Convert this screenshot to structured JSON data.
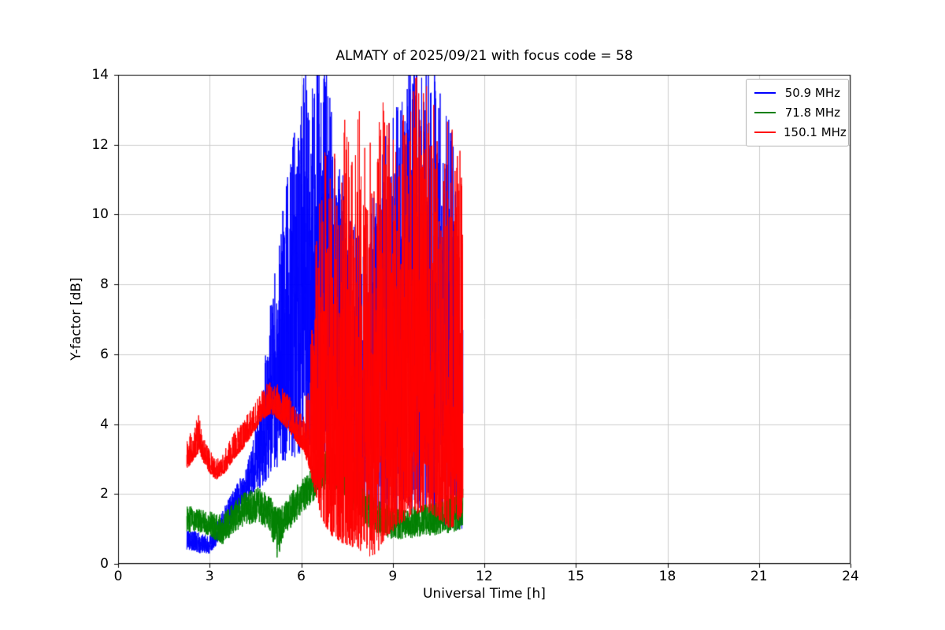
{
  "chart_data": {
    "type": "line",
    "title": "ALMATY of 2025/09/21 with focus code = 58",
    "xlabel": "Universal Time [h]",
    "ylabel": "Y-factor [dB]",
    "xlim": [
      0,
      24
    ],
    "ylim": [
      0,
      14
    ],
    "x_ticks": [
      0,
      3,
      6,
      9,
      12,
      15,
      18,
      21,
      24
    ],
    "y_ticks": [
      0,
      2,
      4,
      6,
      8,
      10,
      12,
      14
    ],
    "grid": true,
    "grid_color": "#cccccc",
    "frame_color": "#000000",
    "legend_position": "upper right",
    "sample_step_h": 0.004,
    "series": [
      {
        "name": "50.9 MHz",
        "color": "#0000ff",
        "bias": 1.25,
        "envelope": [
          [
            2.25,
            0.4,
            1.0
          ],
          [
            2.7,
            0.3,
            0.9
          ],
          [
            3.0,
            0.3,
            0.8
          ],
          [
            3.3,
            0.6,
            1.3
          ],
          [
            3.7,
            1.2,
            2.0
          ],
          [
            4.1,
            1.6,
            2.6
          ],
          [
            4.4,
            2.0,
            3.4
          ],
          [
            4.7,
            2.2,
            5.0
          ],
          [
            5.0,
            2.5,
            7.5
          ],
          [
            5.3,
            2.8,
            9.5
          ],
          [
            5.6,
            3.0,
            11.5
          ],
          [
            5.9,
            3.0,
            13.0
          ],
          [
            6.1,
            3.5,
            14.3
          ],
          [
            6.5,
            3.0,
            14.3
          ],
          [
            6.9,
            2.5,
            14.3
          ],
          [
            7.2,
            2.0,
            12.0
          ],
          [
            7.6,
            1.8,
            10.0
          ],
          [
            8.0,
            1.5,
            9.5
          ],
          [
            8.4,
            1.5,
            11.0
          ],
          [
            8.8,
            1.5,
            12.5
          ],
          [
            9.2,
            1.5,
            13.5
          ],
          [
            9.6,
            1.5,
            14.3
          ],
          [
            10.0,
            1.5,
            14.3
          ],
          [
            10.4,
            1.3,
            14.3
          ],
          [
            10.8,
            1.0,
            13.5
          ],
          [
            11.1,
            0.8,
            11.0
          ],
          [
            11.3,
            0.8,
            7.0
          ]
        ]
      },
      {
        "name": "71.8 MHz",
        "color": "#008000",
        "bias": 1.0,
        "envelope": [
          [
            2.25,
            0.9,
            1.7
          ],
          [
            2.6,
            0.9,
            1.6
          ],
          [
            3.0,
            0.8,
            1.5
          ],
          [
            3.4,
            0.5,
            1.4
          ],
          [
            3.8,
            0.9,
            1.8
          ],
          [
            4.2,
            1.1,
            2.1
          ],
          [
            4.6,
            1.2,
            2.2
          ],
          [
            5.0,
            0.9,
            1.9
          ],
          [
            5.2,
            0.0,
            1.6
          ],
          [
            5.4,
            0.7,
            1.7
          ],
          [
            5.8,
            1.2,
            2.2
          ],
          [
            6.2,
            1.6,
            2.6
          ],
          [
            6.6,
            2.0,
            3.1
          ],
          [
            7.0,
            2.1,
            3.4
          ],
          [
            7.4,
            1.9,
            3.1
          ],
          [
            7.8,
            1.4,
            2.6
          ],
          [
            8.2,
            1.0,
            2.1
          ],
          [
            8.6,
            0.8,
            1.8
          ],
          [
            9.0,
            0.7,
            1.6
          ],
          [
            9.5,
            0.7,
            1.6
          ],
          [
            10.0,
            0.8,
            1.7
          ],
          [
            10.5,
            0.8,
            1.8
          ],
          [
            11.0,
            0.9,
            2.1
          ],
          [
            11.3,
            1.0,
            2.3
          ]
        ]
      },
      {
        "name": "150.1 MHz",
        "color": "#ff0000",
        "bias": 1.9,
        "envelope": [
          [
            2.25,
            2.7,
            3.7
          ],
          [
            2.5,
            3.0,
            4.0
          ],
          [
            2.65,
            3.2,
            4.35
          ],
          [
            2.8,
            2.9,
            3.6
          ],
          [
            3.0,
            2.6,
            3.3
          ],
          [
            3.2,
            2.4,
            3.0
          ],
          [
            3.5,
            2.6,
            3.3
          ],
          [
            3.8,
            3.0,
            3.8
          ],
          [
            4.1,
            3.3,
            4.1
          ],
          [
            4.4,
            3.7,
            4.5
          ],
          [
            4.7,
            4.1,
            5.0
          ],
          [
            5.0,
            4.3,
            5.3
          ],
          [
            5.3,
            4.1,
            5.1
          ],
          [
            5.6,
            3.8,
            4.8
          ],
          [
            5.9,
            3.4,
            4.4
          ],
          [
            6.1,
            3.2,
            4.2
          ],
          [
            6.3,
            2.6,
            6.0
          ],
          [
            6.5,
            1.8,
            9.5
          ],
          [
            6.7,
            1.2,
            11.5
          ],
          [
            7.0,
            0.8,
            13.0
          ],
          [
            7.3,
            0.6,
            13.5
          ],
          [
            7.6,
            0.5,
            12.5
          ],
          [
            7.9,
            0.4,
            13.0
          ],
          [
            8.2,
            0.2,
            12.0
          ],
          [
            8.5,
            0.3,
            13.0
          ],
          [
            8.8,
            0.8,
            13.5
          ],
          [
            9.1,
            1.0,
            12.5
          ],
          [
            9.4,
            1.2,
            13.0
          ],
          [
            9.7,
            1.4,
            14.3
          ],
          [
            10.0,
            1.5,
            14.3
          ],
          [
            10.3,
            1.4,
            13.5
          ],
          [
            10.6,
            1.2,
            13.0
          ],
          [
            10.9,
            1.0,
            12.5
          ],
          [
            11.15,
            1.2,
            12.5
          ],
          [
            11.3,
            1.5,
            11.4
          ]
        ]
      }
    ]
  }
}
